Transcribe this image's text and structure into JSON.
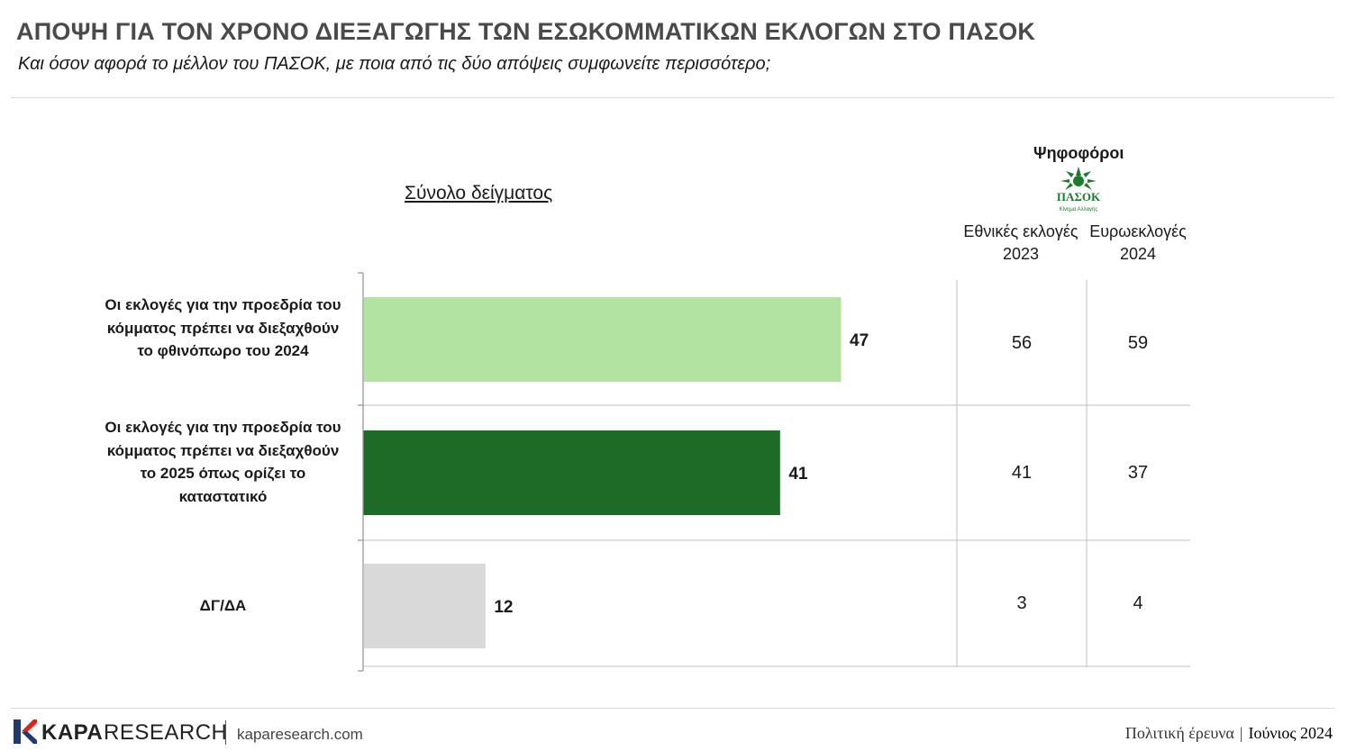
{
  "header": {
    "title": "ΑΠΟΨΗ ΓΙΑ ΤΟΝ ΧΡΟΝΟ ΔΙΕΞΑΓΩΓΗΣ ΤΩΝ ΕΣΩΚΟΜΜΑΤΙΚΩΝ ΕΚΛΟΓΩΝ ΣΤΟ ΠΑΣΟΚ",
    "subtitle": "Και όσον αφορά το μέλλον του ΠΑΣΟΚ, με ποια από τις δύο απόψεις συμφωνείτε περισσότερο;"
  },
  "chart_data": {
    "type": "bar",
    "orientation": "horizontal",
    "sample_label": "Σύνολο δείγματος",
    "categories": [
      "Οι εκλογές για την προεδρία του κόμματος πρέπει να διεξαχθούν το φθινόπωρο του 2024",
      "Οι εκλογές για την προεδρία του κόμματος πρέπει να διεξαχθούν το 2025 όπως ορίζει το καταστατικό",
      "ΔΓ/ΔΑ"
    ],
    "values": [
      47,
      41,
      12
    ],
    "bar_colors": [
      "#b3e3a0",
      "#1e6b27",
      "#d9d9d9"
    ],
    "xlim": [
      0,
      100
    ]
  },
  "table": {
    "group_label": "Ψηφοφόροι",
    "logo_text": "ΠΑΣΟΚ",
    "logo_subtext": "Κίνημα Αλλαγής",
    "columns": [
      {
        "line1": "Εθνικές εκλογές",
        "line2": "2023",
        "values": [
          "56",
          "41",
          "3"
        ]
      },
      {
        "line1": "Ευρωεκλογές",
        "line2": "2024",
        "values": [
          "59",
          "37",
          "4"
        ]
      }
    ]
  },
  "footer": {
    "brand_bold": "KAPA",
    "brand_light": "RESEARCH",
    "website": "kaparesearch.com",
    "right_label": "Πολιτική έρευνα",
    "right_sep": "|",
    "right_date": "Ιούνιος 2024"
  },
  "colors": {
    "title": "#4a4a4a",
    "logo_green": "#1e7a2e",
    "axis": "#a6a6a6",
    "grid": "#bfbfbf"
  }
}
